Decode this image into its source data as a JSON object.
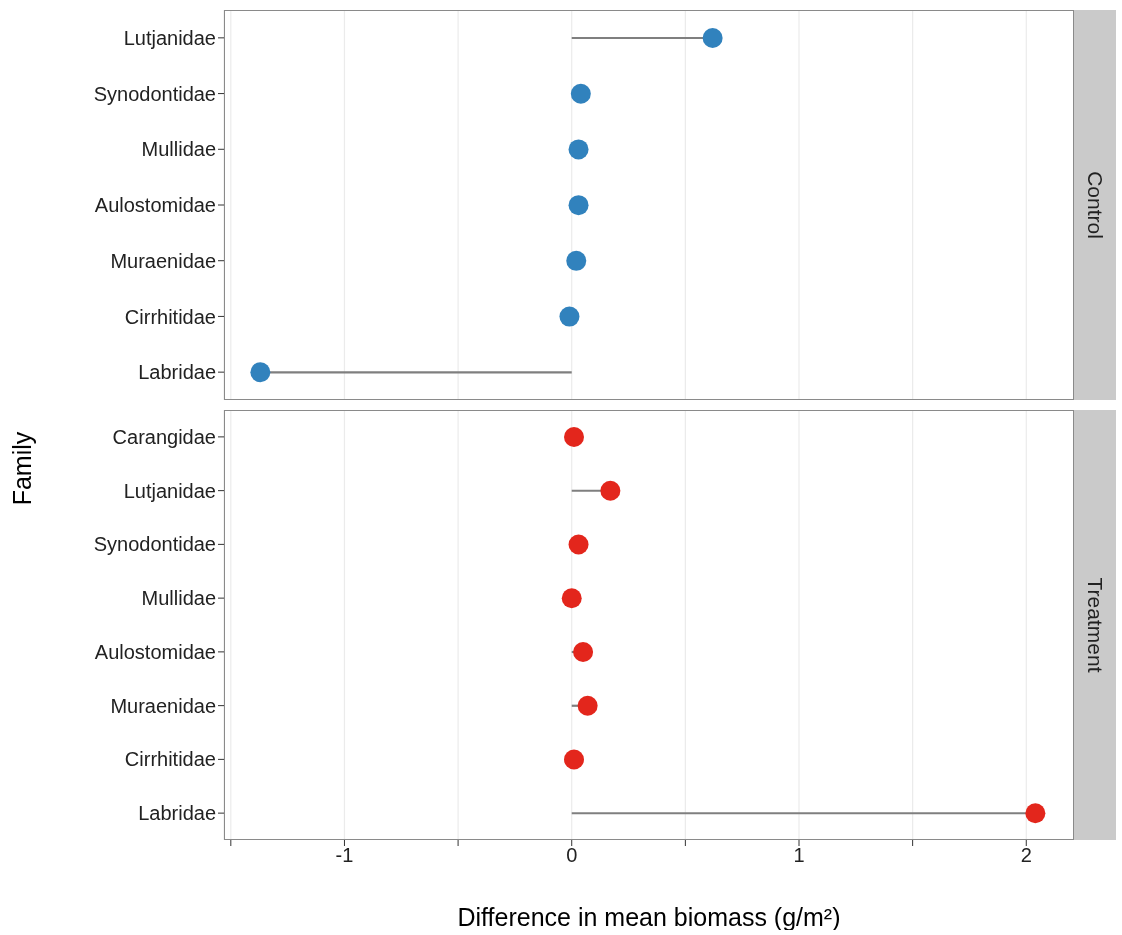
{
  "chart_data": [
    {
      "type": "lollipop",
      "title": "Control",
      "ylabel": "Family",
      "orientation": "horizontal",
      "categories": [
        "Lutjanidae",
        "Synodontidae",
        "Mullidae",
        "Aulostomidae",
        "Muraenidae",
        "Cirrhitidae",
        "Labridae"
      ],
      "values": [
        0.62,
        0.04,
        0.03,
        0.03,
        0.02,
        -0.01,
        -1.37
      ],
      "color": "#3182bd",
      "marker": "circle",
      "xlim": [
        -1.53,
        2.21
      ],
      "xticks": [
        {
          "value": -1.5,
          "label": null
        },
        -1,
        {
          "value": -0.5,
          "label": null
        },
        0,
        {
          "value": 0.5,
          "label": null
        },
        1,
        {
          "value": 1.5,
          "label": null
        },
        2
      ],
      "grid": "x",
      "tick_labels": "y"
    },
    {
      "type": "lollipop",
      "title": "Treatment",
      "xlabel": "Difference in mean biomass (g/m²)",
      "orientation": "horizontal",
      "categories": [
        "Carangidae",
        "Lutjanidae",
        "Synodontidae",
        "Mullidae",
        "Aulostomidae",
        "Muraenidae",
        "Cirrhitidae",
        "Labridae"
      ],
      "values": [
        0.01,
        0.17,
        0.03,
        0.0,
        0.05,
        0.07,
        0.01,
        2.04
      ],
      "color": "#e3261c",
      "marker": "circle",
      "xlim": [
        -1.53,
        2.21
      ],
      "xticks": [
        {
          "value": -1.5,
          "label": null
        },
        -1,
        {
          "value": -0.5,
          "label": null
        },
        0,
        {
          "value": 0.5,
          "label": null
        },
        1,
        {
          "value": 1.5,
          "label": null
        },
        2
      ],
      "grid": "x"
    }
  ]
}
